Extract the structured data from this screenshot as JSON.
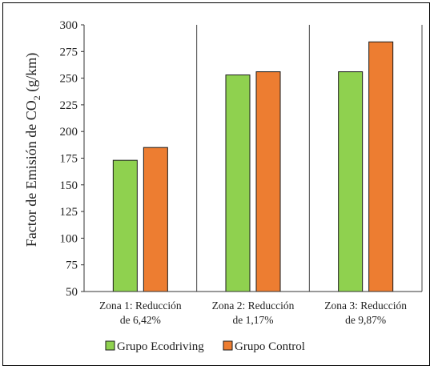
{
  "chart_data": {
    "type": "bar",
    "categories": [
      [
        "Zona 1: Reducción",
        "de 6,42%"
      ],
      [
        "Zona 2: Reducción",
        "de 1,17%"
      ],
      [
        "Zona 3: Reducción",
        "de 9,87%"
      ]
    ],
    "series": [
      {
        "name": "Grupo Ecodriving",
        "color": "#8fd14f",
        "values": [
          173,
          253,
          256
        ]
      },
      {
        "name": "Grupo Control",
        "color": "#ed7d31",
        "values": [
          185,
          256,
          284
        ]
      }
    ],
    "ylabel": "Factor de Emisión de CO",
    "ylabel_subscript": "2",
    "ylabel_unit": " (g/km)",
    "ylim": [
      50,
      300
    ],
    "yticks": [
      50,
      75,
      100,
      125,
      150,
      175,
      200,
      225,
      250,
      275,
      300
    ],
    "grid": false,
    "category_separators": true,
    "legend_position": "bottom"
  }
}
